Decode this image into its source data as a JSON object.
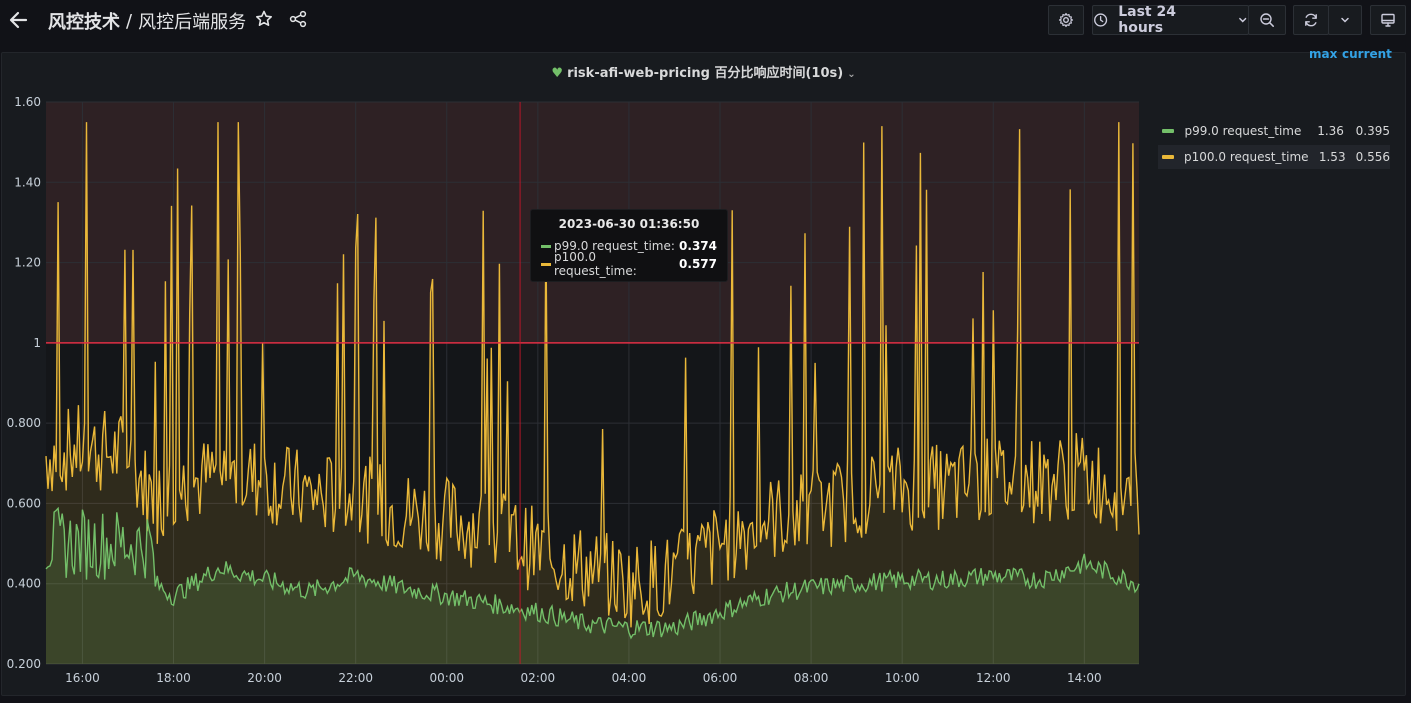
{
  "header": {
    "folder": "风控技术",
    "separator": "/",
    "dashboard_title": "风控后端服务",
    "time_range": "Last 24 hours"
  },
  "panel": {
    "title": "risk-afi-web-pricing 百分比响应时间(10s)",
    "legend": {
      "col_max": "max",
      "col_current": "current",
      "items": [
        {
          "name": "p99.0 request_time",
          "max": "1.36",
          "current": "0.395",
          "color": "#73bf69"
        },
        {
          "name": "p100.0 request_time",
          "max": "1.53",
          "current": "0.556",
          "color": "#eab839"
        }
      ]
    },
    "tooltip": {
      "time": "2023-06-30 01:36:50",
      "rows": [
        {
          "name": "p99.0 request_time:",
          "value": "0.374",
          "color": "#73bf69"
        },
        {
          "name": "p100.0 request_time:",
          "value": "0.577",
          "color": "#eab839"
        }
      ]
    }
  },
  "chart_data": {
    "type": "line",
    "y_ticks": [
      "0.200",
      "0.400",
      "0.600",
      "0.800",
      "1",
      "1.20",
      "1.40",
      "1.60"
    ],
    "ylim": [
      0.2,
      1.6
    ],
    "x_ticks": [
      "16:00",
      "18:00",
      "20:00",
      "22:00",
      "00:00",
      "02:00",
      "04:00",
      "06:00",
      "08:00",
      "10:00",
      "12:00",
      "14:00"
    ],
    "x_range_hours": [
      15.2,
      39.2
    ],
    "threshold": {
      "value": 1.0,
      "color": "#e02f44"
    },
    "cursor_time_hours": 25.61,
    "series": [
      {
        "name": "p99.0 request_time",
        "color": "#73bf69",
        "x": [
          15.2,
          16.0,
          16.5,
          17.0,
          17.5,
          17.6,
          18.0,
          19.0,
          20.0,
          21.0,
          22.0,
          23.0,
          24.0,
          25.0,
          26.0,
          27.0,
          28.0,
          29.0,
          30.0,
          31.0,
          32.0,
          33.0,
          34.0,
          35.0,
          36.0,
          37.0,
          38.0,
          39.2
        ],
        "y": [
          0.5,
          0.5,
          0.5,
          0.5,
          0.5,
          0.4,
          0.37,
          0.44,
          0.41,
          0.38,
          0.42,
          0.39,
          0.37,
          0.35,
          0.33,
          0.3,
          0.29,
          0.29,
          0.33,
          0.37,
          0.39,
          0.4,
          0.41,
          0.41,
          0.42,
          0.41,
          0.45,
          0.4
        ]
      },
      {
        "name": "p100.0 request_time",
        "color": "#eab839",
        "x": [
          15.2,
          16.0,
          17.0,
          17.6,
          18.0,
          19.0,
          20.0,
          21.0,
          22.0,
          23.0,
          24.0,
          25.0,
          26.0,
          27.0,
          28.0,
          29.0,
          30.0,
          31.0,
          32.0,
          33.0,
          34.0,
          35.0,
          36.0,
          37.0,
          38.0,
          39.2
        ],
        "y": [
          0.72,
          0.74,
          0.72,
          0.6,
          0.64,
          0.67,
          0.66,
          0.62,
          0.62,
          0.58,
          0.56,
          0.54,
          0.48,
          0.44,
          0.4,
          0.42,
          0.5,
          0.56,
          0.58,
          0.62,
          0.64,
          0.64,
          0.66,
          0.66,
          0.67,
          0.62
        ]
      }
    ]
  }
}
